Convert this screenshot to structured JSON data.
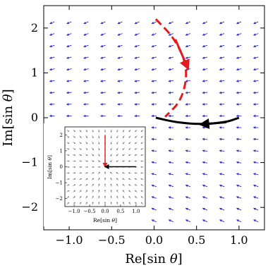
{
  "chart_data": {
    "type": "vector-field",
    "xlabel_main": "Re[sin ",
    "xlabel_sym": "θ",
    "xlabel_close": "]",
    "ylabel_main": "Im[sin ",
    "ylabel_sym": "θ",
    "ylabel_close": "]",
    "xlim": [
      -1.3,
      1.3
    ],
    "ylim": [
      -2.5,
      2.5
    ],
    "x_ticks": [
      -1.0,
      -0.5,
      0.0,
      0.5,
      1.0
    ],
    "x_tick_labels": [
      "−1.0",
      "−0.5",
      "0.0",
      "0.5",
      "1.0"
    ],
    "y_ticks": [
      -2,
      -1,
      0,
      1,
      2
    ],
    "y_tick_labels": [
      "−2",
      "−1",
      "0",
      "1",
      "2"
    ],
    "field_color": "#2b2bd6",
    "field_description": "flow field converging toward 0 on real axis, roughly dv = (-x, -y)",
    "trajectories": [
      {
        "color": "#e41a1c",
        "style": "dashed",
        "points": [
          [
            0.02,
            2.2
          ],
          [
            0.25,
            1.75
          ],
          [
            0.4,
            1.1
          ],
          [
            0.33,
            0.4
          ],
          [
            0.13,
            0.02
          ]
        ]
      },
      {
        "color": "#000000",
        "style": "solid",
        "points": [
          [
            1.0,
            0.0
          ],
          [
            0.85,
            -0.1
          ],
          [
            0.55,
            -0.15
          ],
          [
            0.25,
            -0.1
          ],
          [
            0.02,
            0.0
          ]
        ]
      }
    ],
    "inset": {
      "xlabel_main": "Re[sin ",
      "xlabel_sym": "θ",
      "xlabel_close": "]",
      "ylabel_main": "Im[sin ",
      "ylabel_sym": "θ",
      "ylabel_close": "]",
      "xlim": [
        -1.3,
        1.3
      ],
      "ylim": [
        -2.5,
        2.5
      ],
      "x_ticks": [
        -1.0,
        -0.5,
        0.0,
        0.5,
        1.0
      ],
      "x_tick_labels": [
        "−1.0",
        "−0.5",
        "0.0",
        "0.5",
        "1.0"
      ],
      "y_ticks": [
        -2,
        -1,
        0,
        1,
        2
      ],
      "y_tick_labels": [
        "−2",
        "−1",
        "0",
        "1",
        "2"
      ],
      "field_color": "#777777",
      "arrows": [
        {
          "color": "#e41a1c",
          "from": [
            0,
            2.0
          ],
          "to": [
            0,
            0
          ]
        },
        {
          "color": "#000000",
          "from": [
            1.0,
            0
          ],
          "to": [
            0,
            0
          ]
        }
      ]
    }
  }
}
